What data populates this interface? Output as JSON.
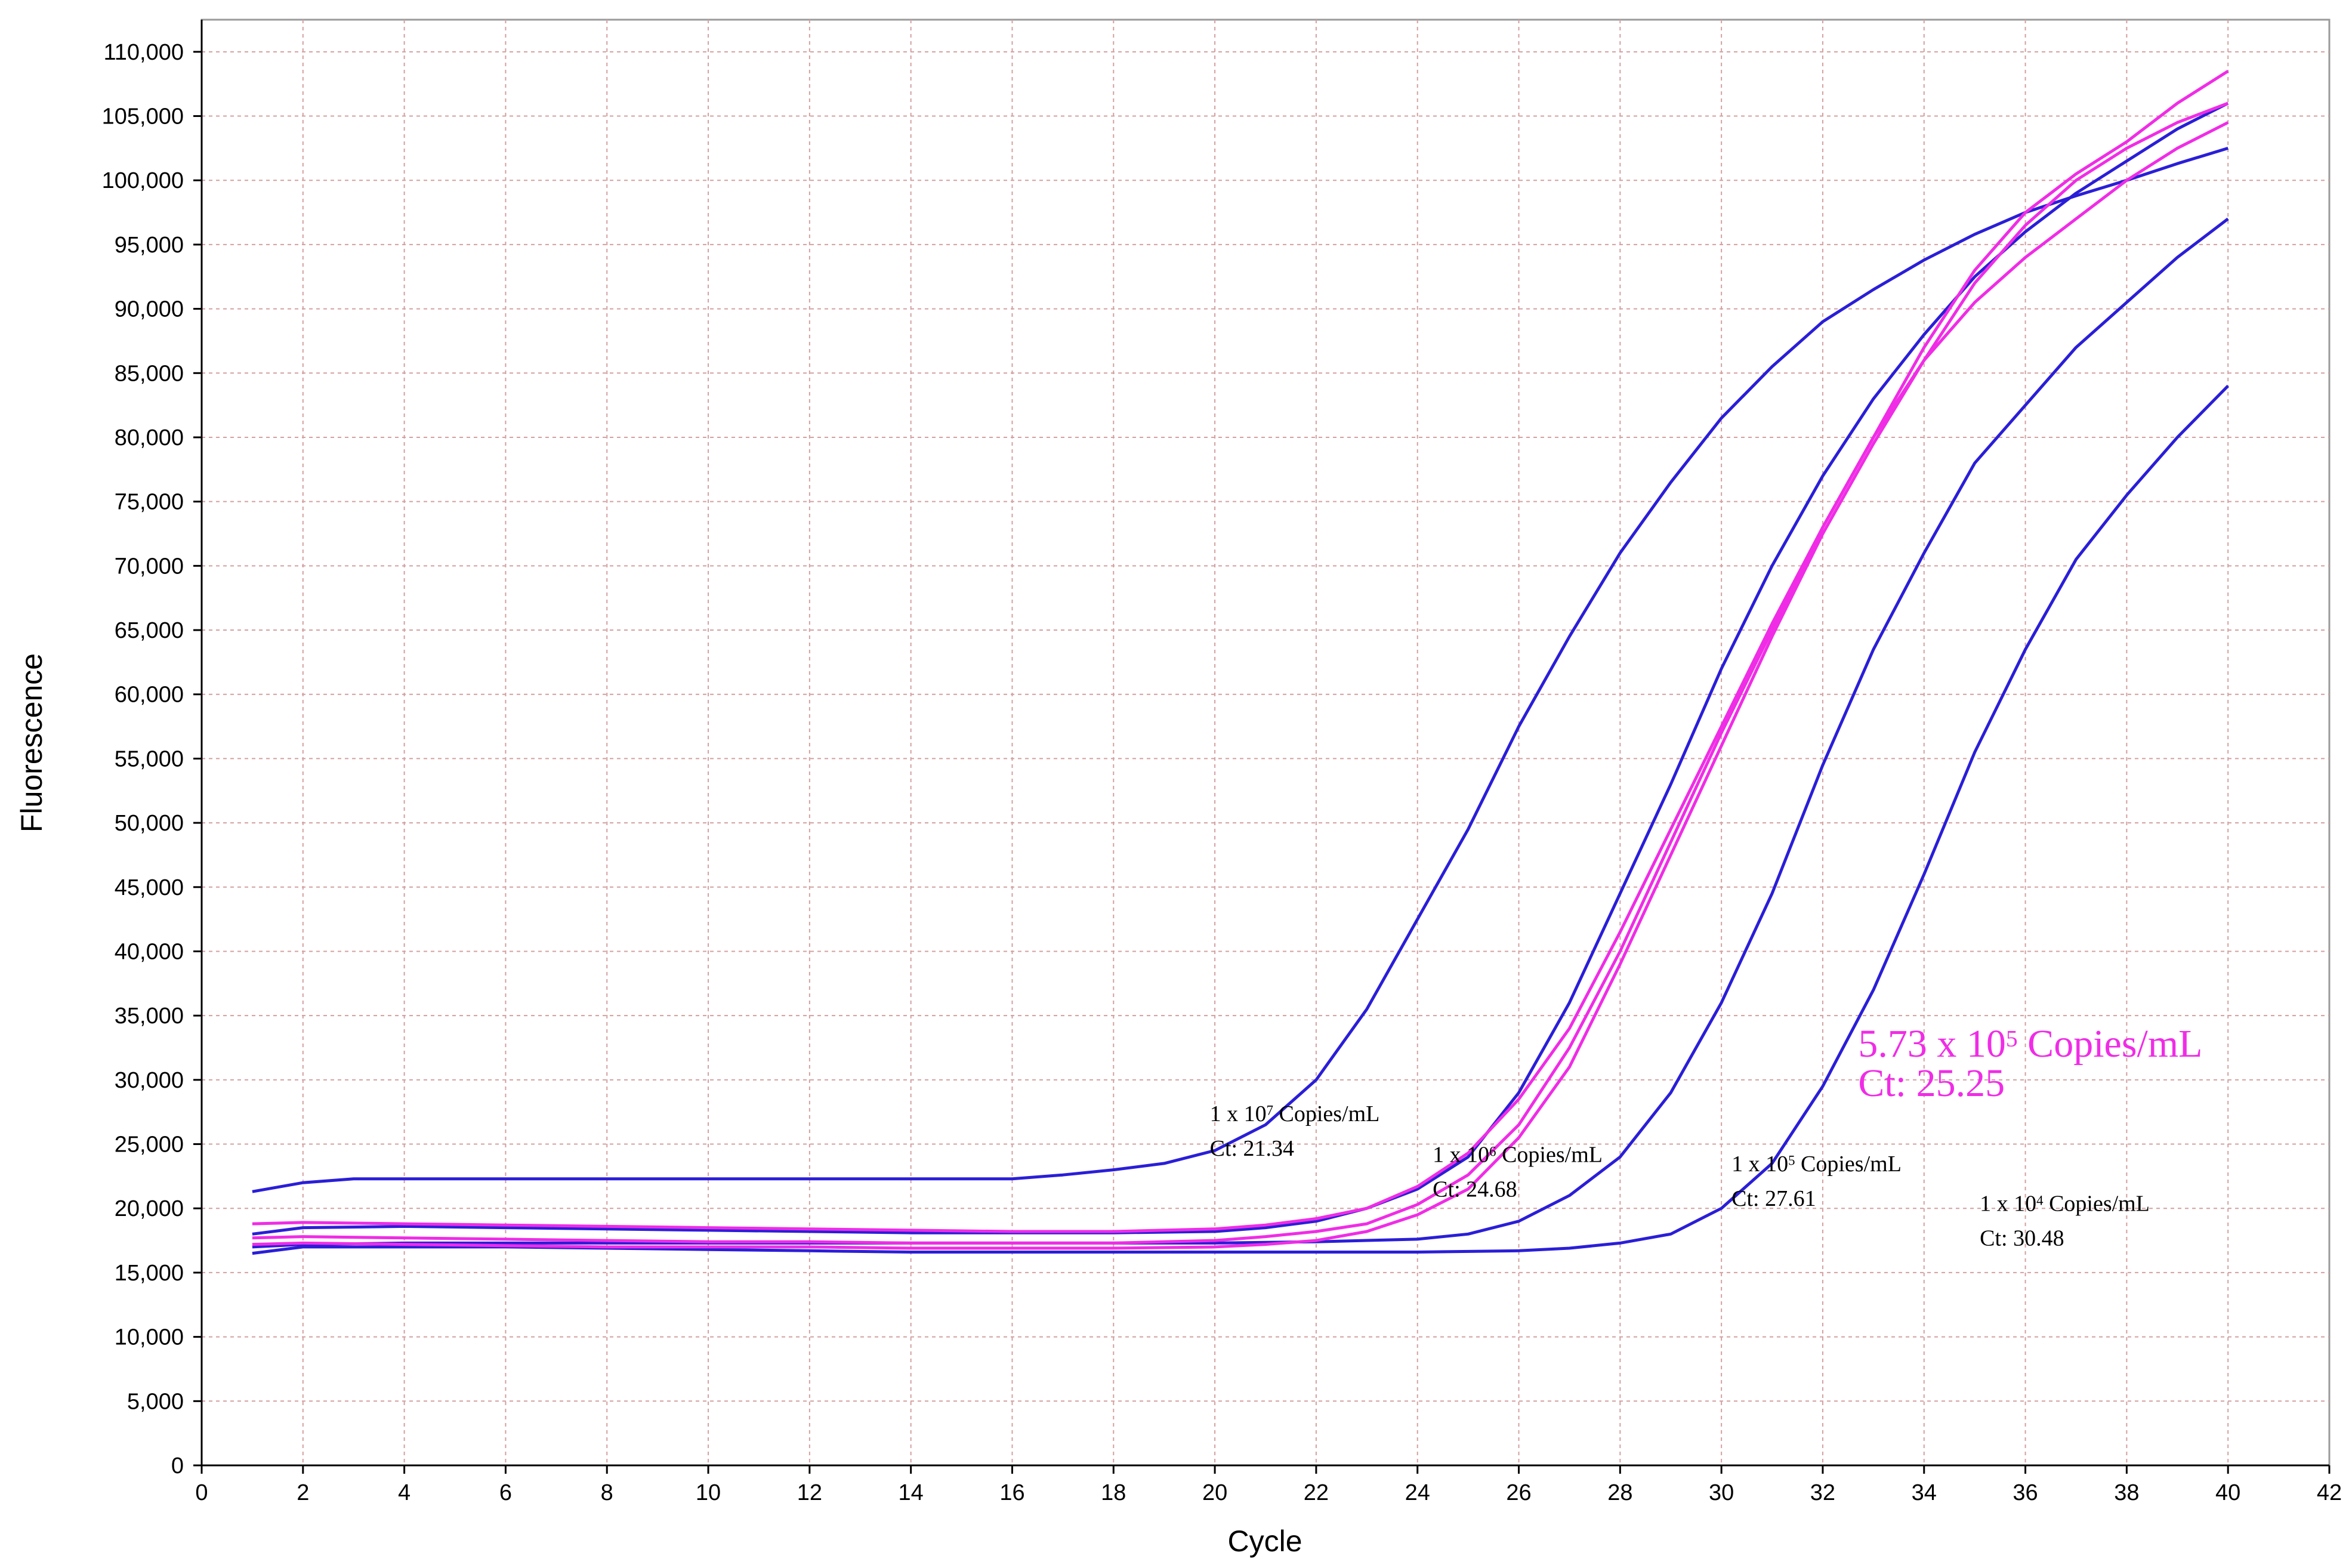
{
  "chart_data": {
    "type": "line",
    "title": "",
    "xlabel": "Cycle",
    "ylabel": "Fluorescence",
    "xlim": [
      0,
      42
    ],
    "ylim": [
      0,
      112500
    ],
    "grid": true,
    "x_ticks": [
      0,
      2,
      4,
      6,
      8,
      10,
      12,
      14,
      16,
      18,
      20,
      22,
      24,
      26,
      28,
      30,
      32,
      34,
      36,
      38,
      40,
      42
    ],
    "y_ticks": [
      "0",
      "5,000",
      "10,000",
      "15,000",
      "20,000",
      "25,000",
      "30,000",
      "35,000",
      "40,000",
      "45,000",
      "50,000",
      "55,000",
      "60,000",
      "65,000",
      "70,000",
      "75,000",
      "80,000",
      "85,000",
      "90,000",
      "95,000",
      "100,000",
      "105,000",
      "110,000"
    ],
    "y_tick_step": 5000,
    "colors": {
      "standard": "#2a1ed8",
      "sample": "#f02ce6"
    },
    "series": [
      {
        "group": "standard",
        "x": [
          1,
          2,
          3,
          4,
          6,
          8,
          10,
          12,
          14,
          16,
          17,
          18,
          19,
          20,
          21,
          22,
          23,
          24,
          25,
          26,
          27,
          28,
          29,
          30,
          31,
          32,
          33,
          34,
          35,
          36,
          37,
          38,
          39,
          40
        ],
        "y": [
          21300,
          22000,
          22300,
          22300,
          22300,
          22300,
          22300,
          22300,
          22300,
          22300,
          22600,
          23000,
          23500,
          24500,
          26500,
          30000,
          35500,
          42500,
          49500,
          57500,
          64500,
          71000,
          76500,
          81500,
          85500,
          89000,
          91500,
          93800,
          95800,
          97500,
          98800,
          100000,
          101300,
          102500
        ]
      },
      {
        "group": "standard",
        "x": [
          1,
          2,
          4,
          6,
          8,
          10,
          12,
          14,
          16,
          18,
          20,
          21,
          22,
          23,
          24,
          25,
          26,
          27,
          28,
          29,
          30,
          31,
          32,
          33,
          34,
          35,
          36,
          37,
          38,
          39,
          40
        ],
        "y": [
          18000,
          18500,
          18600,
          18500,
          18400,
          18300,
          18200,
          18100,
          18100,
          18100,
          18200,
          18500,
          19000,
          20000,
          21500,
          24000,
          29000,
          36000,
          44500,
          53000,
          62000,
          70000,
          77000,
          83000,
          88000,
          92500,
          96000,
          99000,
          101500,
          104000,
          106000
        ]
      },
      {
        "group": "standard",
        "x": [
          1,
          2,
          4,
          6,
          8,
          10,
          12,
          14,
          16,
          18,
          20,
          22,
          24,
          25,
          26,
          27,
          28,
          29,
          30,
          31,
          32,
          33,
          34,
          35,
          36,
          37,
          38,
          39,
          40
        ],
        "y": [
          17000,
          17200,
          17300,
          17300,
          17300,
          17300,
          17300,
          17300,
          17300,
          17300,
          17300,
          17400,
          17600,
          18000,
          19000,
          21000,
          24000,
          29000,
          36000,
          44500,
          54500,
          63500,
          71000,
          78000,
          82500,
          87000,
          90500,
          94000,
          97000
        ]
      },
      {
        "group": "standard",
        "x": [
          1,
          2,
          4,
          6,
          8,
          10,
          12,
          14,
          16,
          18,
          20,
          22,
          24,
          26,
          27,
          28,
          29,
          30,
          31,
          32,
          33,
          34,
          35,
          36,
          37,
          38,
          39,
          40
        ],
        "y": [
          16500,
          17000,
          17000,
          17000,
          16900,
          16800,
          16700,
          16600,
          16600,
          16600,
          16600,
          16600,
          16600,
          16700,
          16900,
          17300,
          18000,
          20000,
          23500,
          29500,
          37000,
          46000,
          55500,
          63500,
          70500,
          75500,
          80000,
          84000
        ]
      },
      {
        "group": "sample",
        "x": [
          1,
          2,
          4,
          6,
          8,
          10,
          12,
          14,
          16,
          18,
          20,
          21,
          22,
          23,
          24,
          25,
          26,
          27,
          28,
          29,
          30,
          31,
          32,
          33,
          34,
          35,
          36,
          37,
          38,
          39,
          40
        ],
        "y": [
          18800,
          18900,
          18800,
          18700,
          18600,
          18500,
          18400,
          18300,
          18200,
          18200,
          18400,
          18700,
          19200,
          20000,
          21700,
          24300,
          28500,
          34000,
          41500,
          49500,
          57500,
          65500,
          73000,
          80000,
          86000,
          90500,
          94000,
          97000,
          100000,
          102500,
          104500
        ]
      },
      {
        "group": "sample",
        "x": [
          1,
          2,
          4,
          6,
          8,
          10,
          12,
          14,
          16,
          18,
          20,
          21,
          22,
          23,
          24,
          25,
          26,
          27,
          28,
          29,
          30,
          31,
          32,
          33,
          34,
          35,
          36,
          37,
          38,
          39,
          40
        ],
        "y": [
          17700,
          17800,
          17700,
          17600,
          17500,
          17400,
          17400,
          17300,
          17300,
          17300,
          17500,
          17800,
          18200,
          18800,
          20300,
          22600,
          26500,
          32500,
          40000,
          48500,
          57000,
          65000,
          73000,
          80000,
          87000,
          93000,
          97500,
          100500,
          103000,
          106000,
          108500
        ]
      },
      {
        "group": "sample",
        "x": [
          1,
          2,
          4,
          6,
          8,
          10,
          12,
          14,
          16,
          18,
          20,
          21,
          22,
          23,
          24,
          25,
          26,
          27,
          28,
          29,
          30,
          31,
          32,
          33,
          34,
          35,
          36,
          37,
          38,
          39,
          40
        ],
        "y": [
          17200,
          17300,
          17200,
          17100,
          17000,
          17000,
          17000,
          16900,
          16900,
          16900,
          17000,
          17200,
          17500,
          18200,
          19500,
          21500,
          25500,
          31000,
          39000,
          47500,
          56000,
          64500,
          72500,
          79500,
          86000,
          92000,
          96500,
          100000,
          102500,
          104500,
          106000
        ]
      }
    ],
    "annotations": [
      {
        "id": "a7",
        "prefix": "1 x 10",
        "exp": "7",
        "suffix": " Copies/mL",
        "ct": "Ct: 21.34"
      },
      {
        "id": "a6",
        "prefix": "1 x 10",
        "exp": "6",
        "suffix": " Copies/mL",
        "ct": "Ct: 24.68"
      },
      {
        "id": "a5",
        "prefix": "1 x 10",
        "exp": "5",
        "suffix": " Copies/mL",
        "ct": "Ct: 27.61"
      },
      {
        "id": "a4",
        "prefix": "1 x 10",
        "exp": "4",
        "suffix": " Copies/mL",
        "ct": "Ct: 30.48"
      },
      {
        "id": "sample",
        "prefix": "5.73 x 10",
        "exp": "5",
        "suffix": " Copies/mL",
        "ct": "Ct: 25.25"
      }
    ]
  }
}
